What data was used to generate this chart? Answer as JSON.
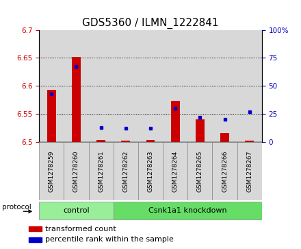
{
  "title": "GDS5360 / ILMN_1222841",
  "samples": [
    "GSM1278259",
    "GSM1278260",
    "GSM1278261",
    "GSM1278262",
    "GSM1278263",
    "GSM1278264",
    "GSM1278265",
    "GSM1278266",
    "GSM1278267"
  ],
  "transformed_count": [
    6.593,
    6.652,
    6.504,
    6.502,
    6.504,
    6.573,
    6.54,
    6.516,
    6.502
  ],
  "percentile_rank": [
    43,
    67,
    13,
    12,
    12,
    30,
    22,
    20,
    27
  ],
  "ylim_left": [
    6.5,
    6.7
  ],
  "ylim_right": [
    0,
    100
  ],
  "yticks_left": [
    6.5,
    6.55,
    6.6,
    6.65,
    6.7
  ],
  "yticks_right": [
    0,
    25,
    50,
    75,
    100
  ],
  "ytick_labels_left": [
    "6.5",
    "6.55",
    "6.6",
    "6.65",
    "6.7"
  ],
  "ytick_labels_right": [
    "0",
    "25",
    "50",
    "75",
    "100%"
  ],
  "bar_color": "#cc0000",
  "dot_color": "#0000cc",
  "bar_bottom": 6.5,
  "protocol_groups": [
    {
      "label": "control",
      "start": 0,
      "end": 3,
      "color": "#99ee99"
    },
    {
      "label": "Csnk1a1 knockdown",
      "start": 3,
      "end": 9,
      "color": "#66dd66"
    }
  ],
  "protocol_label": "protocol",
  "legend_bar_label": "transformed count",
  "legend_dot_label": "percentile rank within the sample",
  "col_bg_color": "#d8d8d8",
  "plot_bg_color": "#ffffff",
  "tick_color_left": "#cc0000",
  "tick_color_right": "#0000cc",
  "title_fontsize": 11,
  "tick_fontsize": 7.5,
  "label_fontsize": 8
}
